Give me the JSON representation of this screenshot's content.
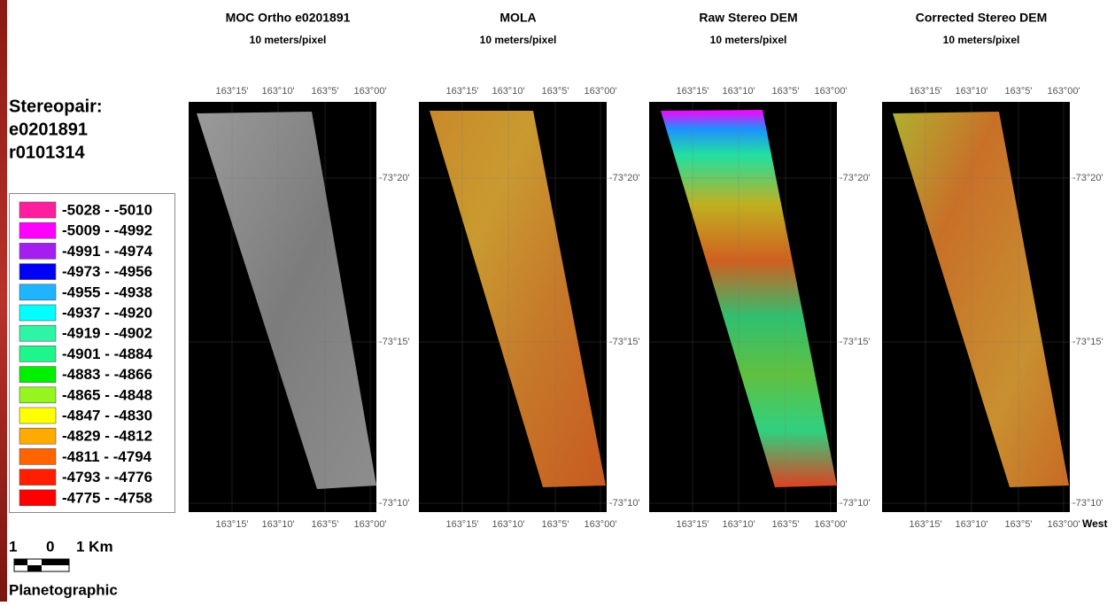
{
  "stereopair": [
    "Stereopair:",
    "e0201891",
    "r0101314"
  ],
  "legend": [
    {
      "label": "-5028 - -5010",
      "color": "#ff1f9e"
    },
    {
      "label": "-5009 - -4992",
      "color": "#ff00ff"
    },
    {
      "label": "-4991 - -4974",
      "color": "#a51ef0"
    },
    {
      "label": "-4973 - -4956",
      "color": "#0000f5"
    },
    {
      "label": "-4955 - -4938",
      "color": "#1eb4ff"
    },
    {
      "label": "-4937 - -4920",
      "color": "#00ffff"
    },
    {
      "label": "-4919 - -4902",
      "color": "#2df5a5"
    },
    {
      "label": "-4901 - -4884",
      "color": "#1ef58c"
    },
    {
      "label": "-4883 - -4866",
      "color": "#00f000"
    },
    {
      "label": "-4865 - -4848",
      "color": "#96f51e"
    },
    {
      "label": "-4847 - -4830",
      "color": "#ffff00"
    },
    {
      "label": "-4829 - -4812",
      "color": "#ffaa00"
    },
    {
      "label": "-4811 - -4794",
      "color": "#ff6400"
    },
    {
      "label": "-4793 - -4776",
      "color": "#ff1e00"
    },
    {
      "label": "-4775 - -4758",
      "color": "#ff0000"
    }
  ],
  "scale_bar": [
    "1",
    "0",
    "1 Km"
  ],
  "projection": "Planetographic",
  "direction": "West",
  "panels": [
    {
      "title": "MOC Ortho e0201891",
      "subtitle": "10 meters/pixel",
      "lon_ticks": [
        "163°15'",
        "163°10'",
        "163°5'",
        "163°00'"
      ],
      "lat_ticks": [
        "-73°20'",
        "-73°15'",
        "-73°10'"
      ]
    },
    {
      "title": "MOLA",
      "subtitle": "10 meters/pixel",
      "lon_ticks": [
        "163°15'",
        "163°10'",
        "163°5'",
        "163°00'"
      ],
      "lat_ticks": [
        "-73°20'",
        "-73°15'",
        "-73°10'"
      ]
    },
    {
      "title": "Raw Stereo DEM",
      "subtitle": "10 meters/pixel",
      "lon_ticks": [
        "163°15'",
        "163°10'",
        "163°5'",
        "163°00'"
      ],
      "lat_ticks": [
        "-73°20'",
        "-73°15'",
        "-73°10'"
      ]
    },
    {
      "title": "Corrected Stereo DEM",
      "subtitle": "10 meters/pixel",
      "lon_ticks": [
        "163°15'",
        "163°10'",
        "163°5'",
        "163°00'"
      ],
      "lat_ticks": [
        "-73°20'",
        "-73°15'",
        "-73°10'"
      ]
    }
  ]
}
